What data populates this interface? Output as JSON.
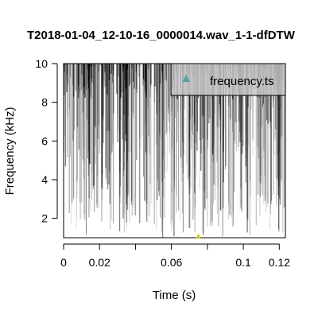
{
  "chart_data": {
    "type": "spectrogram",
    "title": "T2018-01-04_12-10-16_0000014.wav_1-1-dfDTW",
    "xlabel": "Time (s)",
    "ylabel": "Frequency (kHz)",
    "xlim": [
      0,
      0.1234
    ],
    "ylim": [
      1,
      10
    ],
    "x_ticks": [
      0,
      0.02,
      0.06,
      0.1,
      0.12
    ],
    "x_tick_labels": [
      "0",
      "0.02",
      "0.06",
      "0.1",
      "0.12"
    ],
    "x_minor_ticks": [
      0.04,
      0.08
    ],
    "y_ticks": [
      2,
      4,
      6,
      8,
      10
    ],
    "y_tick_labels": [
      "2",
      "4",
      "6",
      "8",
      "10"
    ],
    "legend": {
      "position": "top-right",
      "entries": [
        {
          "label": "frequency.ts",
          "color": "#5aa0a8",
          "marker": "triangle"
        }
      ]
    },
    "series": [
      {
        "name": "frequency.ts",
        "points": [
          {
            "x": 0.075,
            "y": 1.05
          }
        ],
        "color": "#c8c832"
      }
    ],
    "colors": {
      "dense": "#000000",
      "faint": "#bfbfbf",
      "legend_bg": "#c8c8c8"
    },
    "grid": false
  }
}
